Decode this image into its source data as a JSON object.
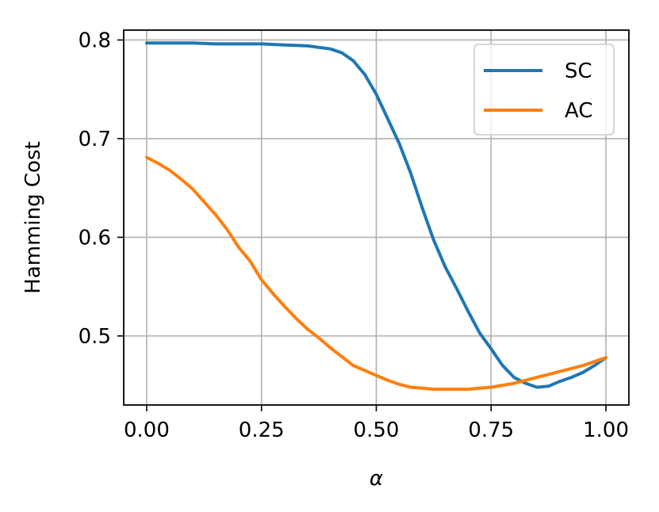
{
  "chart_data": {
    "type": "line",
    "title": "",
    "xlabel": "α",
    "ylabel": "Hamming Cost",
    "xlim": [
      -0.05,
      1.05
    ],
    "ylim": [
      0.43,
      0.81
    ],
    "xticks": [
      0.0,
      0.25,
      0.5,
      0.75,
      1.0
    ],
    "xtick_labels": [
      "0.00",
      "0.25",
      "0.50",
      "0.75",
      "1.00"
    ],
    "yticks": [
      0.5,
      0.6,
      0.7,
      0.8
    ],
    "ytick_labels": [
      "0.5",
      "0.6",
      "0.7",
      "0.8"
    ],
    "grid": true,
    "legend_position": "top-right",
    "series": [
      {
        "name": "SC",
        "color": "#1f77b4",
        "x": [
          0.0,
          0.05,
          0.1,
          0.15,
          0.2,
          0.25,
          0.3,
          0.35,
          0.4,
          0.425,
          0.45,
          0.475,
          0.5,
          0.525,
          0.55,
          0.575,
          0.6,
          0.625,
          0.65,
          0.675,
          0.7,
          0.725,
          0.75,
          0.775,
          0.8,
          0.825,
          0.85,
          0.875,
          0.9,
          0.925,
          0.95,
          0.975,
          1.0
        ],
        "y": [
          0.797,
          0.797,
          0.797,
          0.796,
          0.796,
          0.796,
          0.795,
          0.794,
          0.791,
          0.787,
          0.779,
          0.765,
          0.745,
          0.72,
          0.695,
          0.665,
          0.63,
          0.597,
          0.57,
          0.548,
          0.525,
          0.503,
          0.487,
          0.47,
          0.458,
          0.452,
          0.448,
          0.449,
          0.454,
          0.458,
          0.463,
          0.47,
          0.478
        ]
      },
      {
        "name": "AC",
        "color": "#ff7f0e",
        "x": [
          0.0,
          0.025,
          0.05,
          0.075,
          0.1,
          0.125,
          0.15,
          0.175,
          0.2,
          0.225,
          0.25,
          0.275,
          0.3,
          0.325,
          0.35,
          0.375,
          0.4,
          0.425,
          0.45,
          0.475,
          0.5,
          0.525,
          0.55,
          0.575,
          0.6,
          0.625,
          0.65,
          0.675,
          0.7,
          0.725,
          0.75,
          0.775,
          0.8,
          0.825,
          0.85,
          0.875,
          0.9,
          0.925,
          0.95,
          0.975,
          1.0
        ],
        "y": [
          0.681,
          0.675,
          0.668,
          0.659,
          0.649,
          0.636,
          0.623,
          0.608,
          0.59,
          0.576,
          0.557,
          0.543,
          0.53,
          0.518,
          0.507,
          0.498,
          0.488,
          0.479,
          0.47,
          0.465,
          0.46,
          0.455,
          0.451,
          0.448,
          0.447,
          0.446,
          0.446,
          0.446,
          0.446,
          0.447,
          0.448,
          0.45,
          0.452,
          0.455,
          0.458,
          0.461,
          0.464,
          0.467,
          0.47,
          0.474,
          0.478
        ]
      }
    ]
  }
}
